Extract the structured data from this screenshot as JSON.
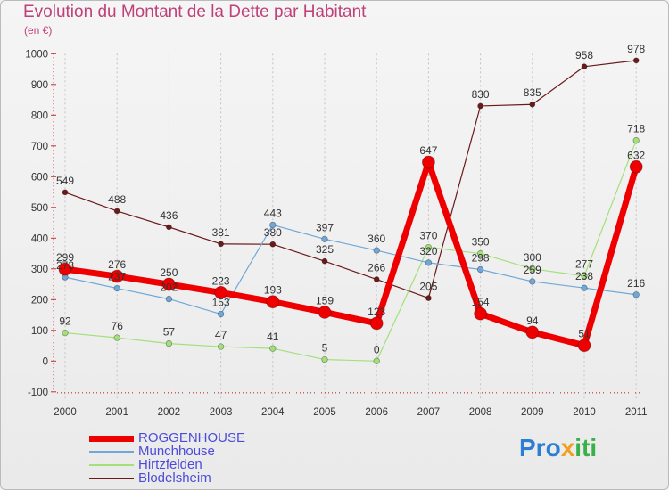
{
  "title": "Evolution du Montant de la Dette par Habitant",
  "subtitle": "(en €)",
  "logo": {
    "p1": "Pro",
    "p2": "x",
    "p3": "iti"
  },
  "chart_data": {
    "type": "line",
    "x": [
      "2000",
      "2001",
      "2002",
      "2003",
      "2004",
      "2005",
      "2006",
      "2007",
      "2008",
      "2009",
      "2010",
      "2011"
    ],
    "ylim": [
      -100,
      1000
    ],
    "yticks": [
      -100,
      0,
      100,
      200,
      300,
      400,
      500,
      600,
      700,
      800,
      900,
      1000
    ],
    "grid": "vertical dashed",
    "legend_position": "bottom-left",
    "series": [
      {
        "name": "Blodelsheim",
        "color": "#6b1a1a",
        "width": 1.2,
        "marker": 3,
        "values": [
          549,
          488,
          436,
          381,
          380,
          325,
          266,
          205,
          830,
          835,
          958,
          978
        ]
      },
      {
        "name": "Hirtzfelden",
        "color": "#a3e07a",
        "width": 1.2,
        "marker": 3.3,
        "values": [
          92,
          76,
          57,
          47,
          41,
          5,
          0,
          370,
          350,
          300,
          277,
          718
        ]
      },
      {
        "name": "Munchhouse",
        "color": "#6fa8d8",
        "width": 1.2,
        "marker": 3.3,
        "values": [
          273,
          237,
          202,
          153,
          443,
          397,
          360,
          320,
          298,
          259,
          238,
          216
        ]
      },
      {
        "name": "ROGGENHOUSE",
        "color": "#ee0000",
        "width": 7,
        "marker": 7,
        "values": [
          299,
          276,
          250,
          223,
          193,
          159,
          123,
          647,
          154,
          94,
          51,
          632
        ]
      }
    ],
    "labels": [
      {
        "x": "2000",
        "y": 549,
        "text": "549",
        "series": "Blodelsheim"
      },
      {
        "x": "2001",
        "y": 488,
        "text": "488",
        "series": "Blodelsheim"
      },
      {
        "x": "2002",
        "y": 436,
        "text": "436",
        "series": "Blodelsheim"
      },
      {
        "x": "2003",
        "y": 381,
        "text": "381",
        "series": "Blodelsheim"
      },
      {
        "x": "2004",
        "y": 380,
        "text": "380",
        "series": "Blodelsheim"
      },
      {
        "x": "2005",
        "y": 325,
        "text": "325",
        "series": "Blodelsheim"
      },
      {
        "x": "2006",
        "y": 266,
        "text": "266",
        "series": "Blodelsheim"
      },
      {
        "x": "2007",
        "y": 205,
        "text": "205",
        "series": "Blodelsheim"
      },
      {
        "x": "2008",
        "y": 830,
        "text": "830",
        "series": "Blodelsheim"
      },
      {
        "x": "2009",
        "y": 835,
        "text": "835",
        "series": "Blodelsheim"
      },
      {
        "x": "2010",
        "y": 958,
        "text": "958",
        "series": "Blodelsheim"
      },
      {
        "x": "2011",
        "y": 978,
        "text": "978",
        "series": "Blodelsheim"
      },
      {
        "x": "2000",
        "y": 92,
        "text": "92",
        "series": "Hirtzfelden"
      },
      {
        "x": "2001",
        "y": 76,
        "text": "76",
        "series": "Hirtzfelden"
      },
      {
        "x": "2002",
        "y": 57,
        "text": "57",
        "series": "Hirtzfelden"
      },
      {
        "x": "2003",
        "y": 47,
        "text": "47",
        "series": "Hirtzfelden"
      },
      {
        "x": "2004",
        "y": 41,
        "text": "41",
        "series": "Hirtzfelden"
      },
      {
        "x": "2005",
        "y": 5,
        "text": "5",
        "series": "Hirtzfelden"
      },
      {
        "x": "2006",
        "y": 0,
        "text": "0",
        "series": "Hirtzfelden"
      },
      {
        "x": "2007",
        "y": 370,
        "text": "370",
        "series": "Hirtzfelden"
      },
      {
        "x": "2008",
        "y": 350,
        "text": "350",
        "series": "Hirtzfelden"
      },
      {
        "x": "2009",
        "y": 300,
        "text": "300",
        "series": "Hirtzfelden"
      },
      {
        "x": "2010",
        "y": 277,
        "text": "277",
        "series": "Hirtzfelden"
      },
      {
        "x": "2011",
        "y": 718,
        "text": "718",
        "series": "Hirtzfelden"
      },
      {
        "x": "2000",
        "y": 273,
        "text": "273",
        "series": "Munchhouse"
      },
      {
        "x": "2001",
        "y": 237,
        "text": "237",
        "series": "Munchhouse"
      },
      {
        "x": "2002",
        "y": 202,
        "text": "202",
        "series": "Munchhouse"
      },
      {
        "x": "2003",
        "y": 153,
        "text": "153",
        "series": "Munchhouse"
      },
      {
        "x": "2004",
        "y": 443,
        "text": "443",
        "series": "Munchhouse"
      },
      {
        "x": "2005",
        "y": 397,
        "text": "397",
        "series": "Munchhouse"
      },
      {
        "x": "2006",
        "y": 360,
        "text": "360",
        "series": "Munchhouse"
      },
      {
        "x": "2007",
        "y": 320,
        "text": "320",
        "series": "Munchhouse"
      },
      {
        "x": "2008",
        "y": 298,
        "text": "298",
        "series": "Munchhouse"
      },
      {
        "x": "2009",
        "y": 259,
        "text": "259",
        "series": "Munchhouse"
      },
      {
        "x": "2010",
        "y": 238,
        "text": "238",
        "series": "Munchhouse"
      },
      {
        "x": "2011",
        "y": 216,
        "text": "216",
        "series": "Munchhouse"
      },
      {
        "x": "2000",
        "y": 299,
        "text": "299",
        "series": "ROGGENHOUSE"
      },
      {
        "x": "2001",
        "y": 276,
        "text": "276",
        "series": "ROGGENHOUSE"
      },
      {
        "x": "2002",
        "y": 250,
        "text": "250",
        "series": "ROGGENHOUSE"
      },
      {
        "x": "2003",
        "y": 223,
        "text": "223",
        "series": "ROGGENHOUSE"
      },
      {
        "x": "2004",
        "y": 193,
        "text": "193",
        "series": "ROGGENHOUSE"
      },
      {
        "x": "2005",
        "y": 159,
        "text": "159",
        "series": "ROGGENHOUSE"
      },
      {
        "x": "2006",
        "y": 123,
        "text": "123",
        "series": "ROGGENHOUSE"
      },
      {
        "x": "2007",
        "y": 647,
        "text": "647",
        "series": "ROGGENHOUSE"
      },
      {
        "x": "2008",
        "y": 154,
        "text": "154",
        "series": "ROGGENHOUSE"
      },
      {
        "x": "2009",
        "y": 94,
        "text": "94",
        "series": "ROGGENHOUSE"
      },
      {
        "x": "2010",
        "y": 51,
        "text": "51",
        "series": "ROGGENHOUSE"
      },
      {
        "x": "2011",
        "y": 632,
        "text": "632",
        "series": "ROGGENHOUSE"
      }
    ],
    "legend": [
      {
        "name": "ROGGENHOUSE",
        "color": "#ee0000"
      },
      {
        "name": "Munchhouse",
        "color": "#6fa8d8"
      },
      {
        "name": "Hirtzfelden",
        "color": "#a3e07a"
      },
      {
        "name": "Blodelsheim",
        "color": "#6b1a1a"
      }
    ]
  }
}
